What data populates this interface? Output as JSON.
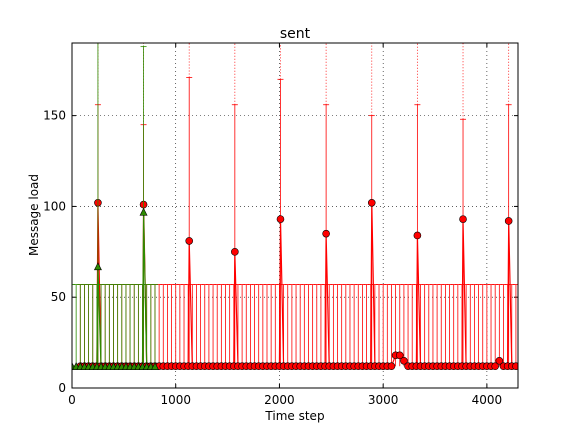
{
  "chart_data": {
    "type": "line",
    "title": "sent",
    "xlabel": "Time step",
    "ylabel": "Message load",
    "xlim": [
      0,
      4300
    ],
    "ylim": [
      0,
      190
    ],
    "xticks": [
      0,
      1000,
      2000,
      3000,
      4000
    ],
    "yticks": [
      0,
      50,
      100,
      150
    ],
    "grid": "dotted",
    "series": [
      {
        "color": "#ff0000",
        "marker": "circle",
        "peak_x": [
          250,
          690,
          1130,
          1570,
          2010,
          2450,
          2890,
          3330,
          3770,
          4210
        ],
        "peak_y": [
          102,
          101,
          81,
          75,
          93,
          85,
          102,
          84,
          93,
          92
        ],
        "peak_max": [
          156,
          145,
          171,
          156,
          170,
          156,
          150,
          156,
          148,
          156
        ],
        "peak_mean_y": 57,
        "baseline_y": 12,
        "baseline_max": 57,
        "marker_step": 40,
        "x_start": 80,
        "x_end": 4300,
        "low_spikes": [
          {
            "x": 150,
            "y": 12
          },
          {
            "x": 780,
            "y": 15
          },
          {
            "x": 3110,
            "y": 18
          },
          {
            "x": 3150,
            "y": 18
          },
          {
            "x": 3200,
            "y": 15
          },
          {
            "x": 3580,
            "y": 18
          },
          {
            "x": 4110,
            "y": 15
          },
          {
            "x": 4150,
            "y": 12
          }
        ]
      },
      {
        "color": "#2e8b00",
        "marker": "triangle",
        "peak_x": [
          250,
          690
        ],
        "peak_y": [
          67,
          97
        ],
        "peak_max": [
          190,
          188
        ],
        "baseline_y": 12,
        "baseline_max": 57,
        "x_start": 0,
        "x_end": 800,
        "marker_step": 40
      }
    ]
  }
}
